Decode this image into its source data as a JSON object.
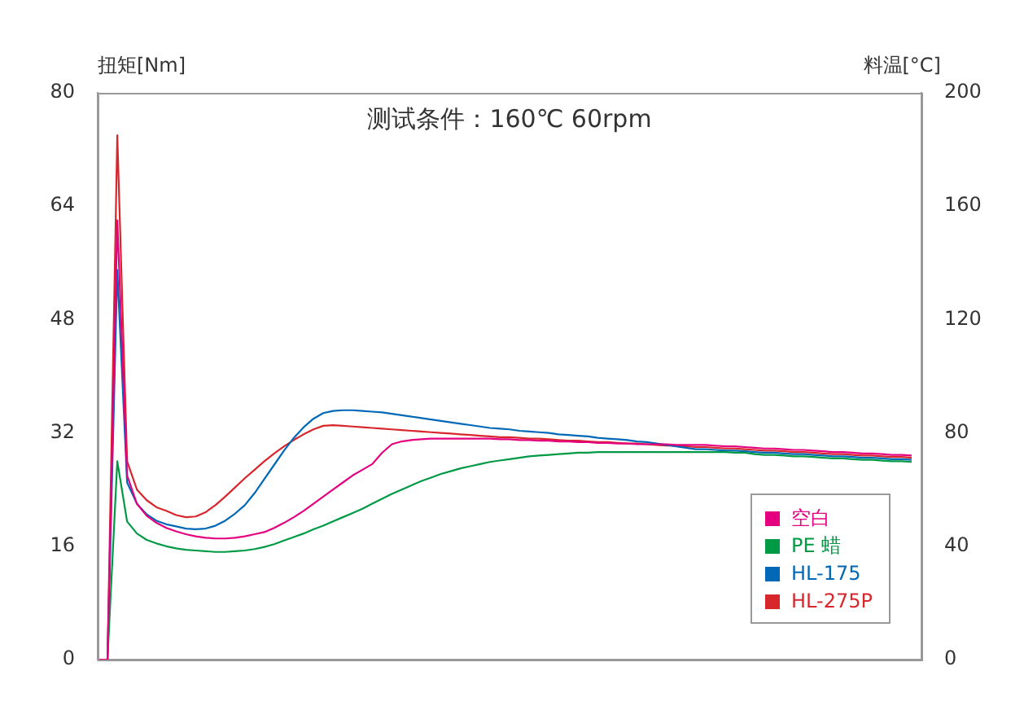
{
  "chart_data": {
    "type": "line",
    "title": "测试条件：160℃ 60rpm",
    "ylabel": "扭矩[Nm]",
    "y2label": "料温[°C]",
    "categories": [
      null,
      null,
      null,
      null,
      null,
      null,
      null,
      null,
      null,
      null,
      null,
      null,
      null,
      null,
      null,
      null,
      null,
      null,
      null,
      null,
      null,
      null,
      null,
      null,
      null,
      null,
      null,
      null,
      null,
      null,
      null,
      null,
      null,
      null,
      null,
      null,
      null,
      null,
      null,
      null,
      null,
      null,
      null,
      null,
      null,
      null,
      null,
      null,
      null,
      null,
      null,
      null,
      null,
      null,
      null,
      null,
      null,
      null,
      null,
      null,
      null,
      null,
      null,
      null,
      null,
      null,
      null,
      null,
      null,
      null,
      null,
      null,
      null,
      null,
      null,
      null,
      null,
      null,
      null,
      null,
      null,
      null,
      null,
      null,
      null
    ],
    "ylim": [
      0,
      80
    ],
    "yticks": [
      0,
      16,
      32,
      48,
      64,
      80
    ],
    "y2lim": [
      0,
      200
    ],
    "y2ticks": [
      0,
      40,
      80,
      120,
      160,
      200
    ],
    "grid": false,
    "legend": "bottom right",
    "marker": "none",
    "series": [
      {
        "name": "空白",
        "color": "#e4007f",
        "values": [
          0,
          0,
          62,
          26,
          22,
          20.3,
          19.3,
          18.6,
          18.1,
          17.7,
          17.4,
          17.2,
          17.1,
          17.1,
          17.2,
          17.4,
          17.7,
          18.0,
          18.6,
          19.3,
          20.1,
          21,
          22,
          23,
          24,
          25,
          26,
          26.8,
          27.6,
          29.2,
          30.4,
          30.8,
          31.0,
          31.1,
          31.2,
          31.2,
          31.2,
          31.2,
          31.2,
          31.2,
          31.2,
          31.1,
          31.1,
          31.0,
          31.0,
          30.9,
          30.9,
          30.8,
          30.8,
          30.7,
          30.7,
          30.6,
          30.6,
          30.5,
          30.5,
          30.4,
          30.4,
          30.4,
          30.4,
          30.3,
          30.3,
          30.3,
          30.3,
          30.2,
          30.1,
          30.1,
          30.0,
          29.9,
          29.8,
          29.8,
          29.7,
          29.6,
          29.6,
          29.5,
          29.4,
          29.3,
          29.3,
          29.2,
          29.1,
          29.1,
          29.0,
          28.9,
          28.9,
          28.8,
          null
        ]
      },
      {
        "name": "PE 蜡",
        "color": "#009944",
        "values": [
          0,
          0,
          28,
          19.5,
          17.8,
          16.9,
          16.4,
          16.0,
          15.7,
          15.5,
          15.4,
          15.3,
          15.2,
          15.2,
          15.3,
          15.4,
          15.6,
          15.9,
          16.3,
          16.8,
          17.3,
          17.8,
          18.4,
          18.9,
          19.5,
          20.1,
          20.7,
          21.3,
          22.0,
          22.7,
          23.4,
          24.0,
          24.6,
          25.2,
          25.7,
          26.2,
          26.6,
          27.0,
          27.3,
          27.6,
          27.9,
          28.1,
          28.3,
          28.5,
          28.7,
          28.8,
          28.9,
          29.0,
          29.1,
          29.2,
          29.2,
          29.3,
          29.3,
          29.3,
          29.3,
          29.3,
          29.3,
          29.3,
          29.3,
          29.3,
          29.3,
          29.3,
          29.3,
          29.3,
          29.3,
          29.2,
          29.2,
          29.0,
          28.9,
          28.9,
          28.8,
          28.7,
          28.7,
          28.6,
          28.5,
          28.4,
          28.4,
          28.3,
          28.2,
          28.2,
          28.1,
          28.0,
          28.0,
          27.9,
          null
        ]
      },
      {
        "name": "HL-175",
        "color": "#0068b7",
        "values": [
          0,
          0,
          55,
          25,
          22,
          20.5,
          19.6,
          19.1,
          18.8,
          18.5,
          18.4,
          18.5,
          18.9,
          19.6,
          20.6,
          21.8,
          23.5,
          25.5,
          27.5,
          29.5,
          31.3,
          32.8,
          34,
          34.8,
          35.1,
          35.2,
          35.2,
          35.1,
          35,
          34.9,
          34.7,
          34.5,
          34.3,
          34.1,
          33.9,
          33.7,
          33.5,
          33.3,
          33.1,
          32.9,
          32.7,
          32.6,
          32.5,
          32.3,
          32.2,
          32.1,
          32.0,
          31.8,
          31.7,
          31.6,
          31.5,
          31.3,
          31.2,
          31.1,
          31.0,
          30.8,
          30.7,
          30.5,
          30.3,
          30.1,
          29.9,
          29.7,
          29.7,
          29.6,
          29.5,
          29.5,
          29.4,
          29.3,
          29.2,
          29.2,
          29.1,
          29.0,
          29.0,
          28.9,
          28.8,
          28.7,
          28.7,
          28.6,
          28.5,
          28.5,
          28.4,
          28.3,
          28.3,
          28.2,
          null
        ]
      },
      {
        "name": "HL-275P",
        "color": "#d7262c",
        "values": [
          0,
          0,
          74,
          28,
          24,
          22.5,
          21.5,
          21,
          20.4,
          20.1,
          20.2,
          20.8,
          21.8,
          23,
          24.3,
          25.6,
          26.8,
          28,
          29.1,
          30.1,
          31,
          31.8,
          32.5,
          33,
          33.1,
          33,
          32.9,
          32.8,
          32.7,
          32.6,
          32.5,
          32.4,
          32.3,
          32.2,
          32.1,
          32,
          31.9,
          31.8,
          31.7,
          31.6,
          31.5,
          31.4,
          31.4,
          31.3,
          31.2,
          31.2,
          31.1,
          31.0,
          30.9,
          30.9,
          30.8,
          30.7,
          30.7,
          30.6,
          30.5,
          30.5,
          30.4,
          30.3,
          30.2,
          30.2,
          30.1,
          30.0,
          30.0,
          29.9,
          29.8,
          29.8,
          29.7,
          29.6,
          29.5,
          29.5,
          29.4,
          29.3,
          29.3,
          29.2,
          29.1,
          29.0,
          29.0,
          28.9,
          28.8,
          28.8,
          28.7,
          28.6,
          28.6,
          28.5,
          null
        ]
      }
    ]
  }
}
